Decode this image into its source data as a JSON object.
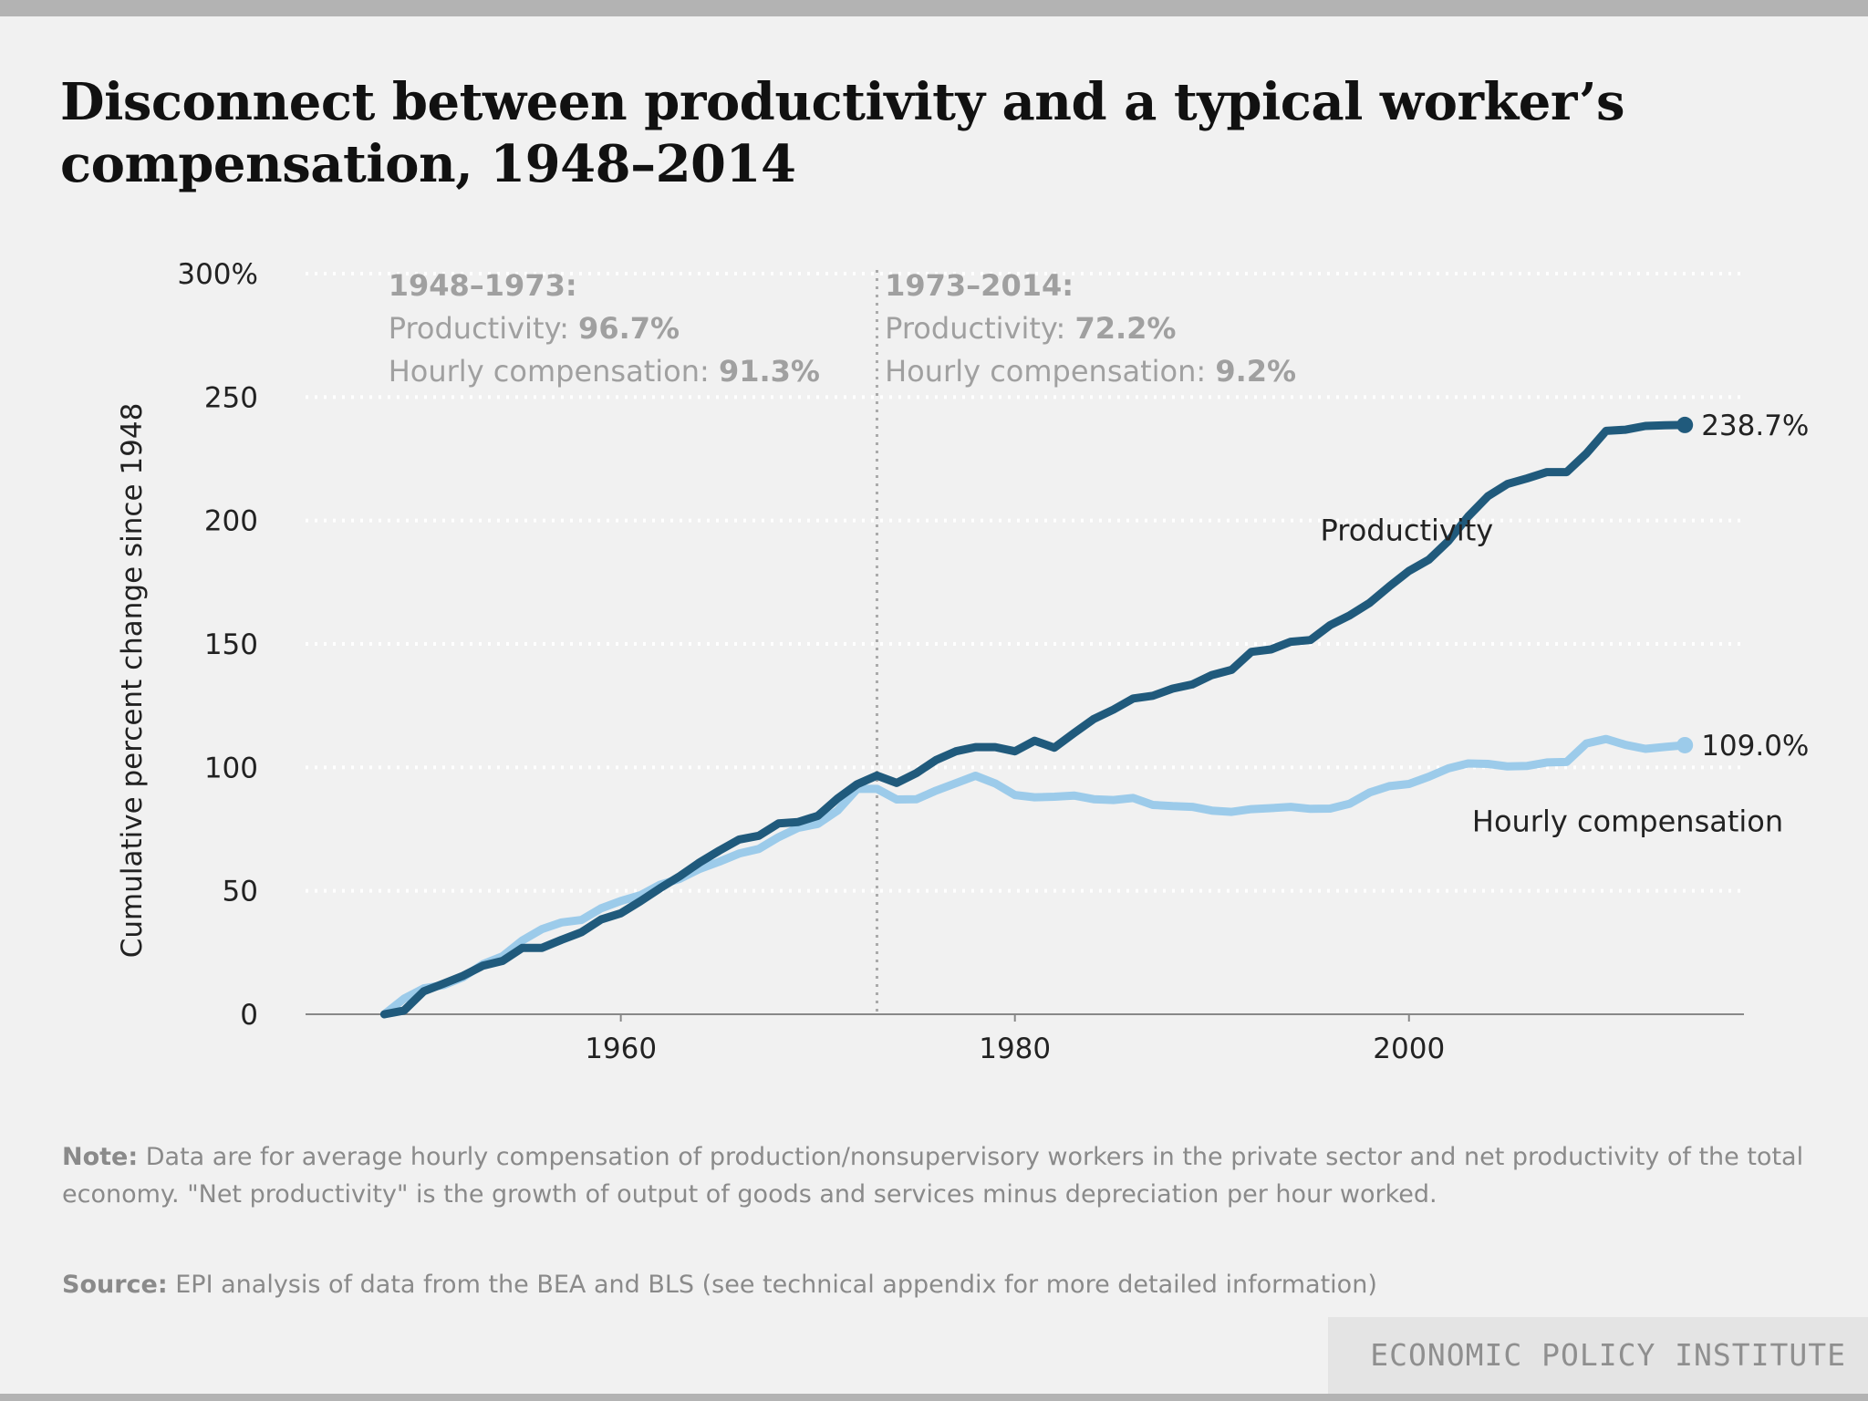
{
  "header": {
    "title": "Disconnect between productivity and a typical worker’s compensation, 1948–2014"
  },
  "notes": {
    "note_label": "Note:",
    "note_text": " Data are for average hourly compensation of production/nonsupervisory workers in the private sector and net productivity of the total economy. \"Net productivity\" is the growth of output of goods and services minus depreciation per hour worked.",
    "source_label": "Source:",
    "source_text": " EPI analysis of data from the BEA and BLS (see technical appendix for more detailed information)"
  },
  "footer": {
    "brand": "ECONOMIC POLICY INSTITUTE"
  },
  "colors": {
    "productivity": "#205a7c",
    "compensation": "#9ccbea",
    "grid": "#ffffff",
    "annotation": "#a0a0a0"
  },
  "chart_data": {
    "type": "line",
    "title": "Disconnect between productivity and a typical worker’s compensation, 1948–2014",
    "xlabel": "",
    "ylabel": "Cumulative percent change since 1948",
    "xlim": [
      1944,
      2017
    ],
    "ylim": [
      0,
      300
    ],
    "x_ticks": [
      1960,
      1980,
      2000
    ],
    "y_ticks": [
      0,
      50,
      100,
      150,
      200,
      250,
      300
    ],
    "y_tick_labels": [
      "0",
      "50",
      "100",
      "150",
      "200",
      "250",
      "300%"
    ],
    "grid": true,
    "divider_year": 1973,
    "periods": [
      {
        "heading": "1948–1973:",
        "prod_label": "Productivity: ",
        "prod_value": "96.7%",
        "comp_label": "Hourly compensation: ",
        "comp_value": "91.3%",
        "anchor_year": 1948.2
      },
      {
        "heading": "1973–2014:",
        "prod_label": "Productivity: ",
        "prod_value": "72.2%",
        "comp_label": "Hourly compensation: ",
        "comp_value": "9.2%",
        "anchor_year": 1973.4
      }
    ],
    "series": [
      {
        "name": "Productivity",
        "end_label": "238.7%",
        "label_year": 1995.5,
        "label_value": 192,
        "x": [
          1948,
          1949,
          1950,
          1951,
          1952,
          1953,
          1954,
          1955,
          1956,
          1957,
          1958,
          1959,
          1960,
          1961,
          1962,
          1963,
          1964,
          1965,
          1966,
          1967,
          1968,
          1969,
          1970,
          1971,
          1972,
          1973,
          1974,
          1975,
          1976,
          1977,
          1978,
          1979,
          1980,
          1981,
          1982,
          1983,
          1984,
          1985,
          1986,
          1987,
          1988,
          1989,
          1990,
          1991,
          1992,
          1993,
          1994,
          1995,
          1996,
          1997,
          1998,
          1999,
          2000,
          2001,
          2002,
          2003,
          2004,
          2005,
          2006,
          2007,
          2008,
          2009,
          2010,
          2011,
          2012,
          2013,
          2014
        ],
        "values": [
          0,
          1.5,
          9.3,
          12.4,
          15.6,
          19.7,
          21.6,
          26.9,
          26.9,
          30.2,
          33.2,
          38.4,
          40.9,
          45.8,
          51.1,
          56.0,
          61.5,
          66.3,
          70.8,
          72.3,
          77.3,
          77.9,
          80.4,
          87.4,
          93.2,
          96.7,
          93.7,
          97.7,
          103.0,
          106.5,
          108.2,
          108.2,
          106.5,
          110.8,
          108.0,
          113.9,
          119.6,
          123.4,
          127.9,
          129.0,
          131.9,
          133.6,
          137.4,
          139.5,
          146.8,
          147.8,
          150.9,
          151.6,
          157.6,
          161.6,
          166.6,
          173.3,
          179.6,
          184.1,
          191.7,
          201.6,
          209.8,
          214.8,
          217.1,
          219.6,
          219.6,
          227.1,
          236.3,
          236.8,
          238.3,
          238.6,
          238.7
        ]
      },
      {
        "name": "Hourly compensation",
        "end_label": "109.0%",
        "label_year": 2003.2,
        "label_value": 74,
        "x": [
          1948,
          1949,
          1950,
          1951,
          1952,
          1953,
          1954,
          1955,
          1956,
          1957,
          1958,
          1959,
          1960,
          1961,
          1962,
          1963,
          1964,
          1965,
          1966,
          1967,
          1968,
          1969,
          1970,
          1971,
          1972,
          1973,
          1974,
          1975,
          1976,
          1977,
          1978,
          1979,
          1980,
          1981,
          1982,
          1983,
          1984,
          1985,
          1986,
          1987,
          1988,
          1989,
          1990,
          1991,
          1992,
          1993,
          1994,
          1995,
          1996,
          1997,
          1998,
          1999,
          2000,
          2001,
          2002,
          2003,
          2004,
          2005,
          2006,
          2007,
          2008,
          2009,
          2010,
          2011,
          2012,
          2013,
          2014
        ],
        "values": [
          0,
          6.3,
          10.5,
          11.8,
          15.0,
          20.3,
          23.5,
          29.9,
          34.5,
          37.2,
          38.2,
          42.9,
          45.9,
          48.2,
          52.5,
          54.9,
          58.9,
          61.8,
          65.1,
          67.0,
          71.7,
          75.5,
          77.1,
          82.5,
          91.3,
          91.3,
          87.0,
          87.1,
          90.6,
          93.6,
          96.6,
          93.5,
          88.8,
          87.9,
          88.1,
          88.6,
          87.1,
          86.8,
          87.6,
          84.8,
          84.3,
          84.0,
          82.5,
          82.0,
          83.1,
          83.5,
          84.0,
          83.2,
          83.3,
          85.3,
          89.8,
          92.4,
          93.3,
          96.2,
          99.6,
          101.6,
          101.4,
          100.4,
          100.6,
          102.0,
          102.2,
          109.7,
          111.5,
          109.1,
          107.5,
          108.3,
          109.0
        ]
      }
    ]
  }
}
